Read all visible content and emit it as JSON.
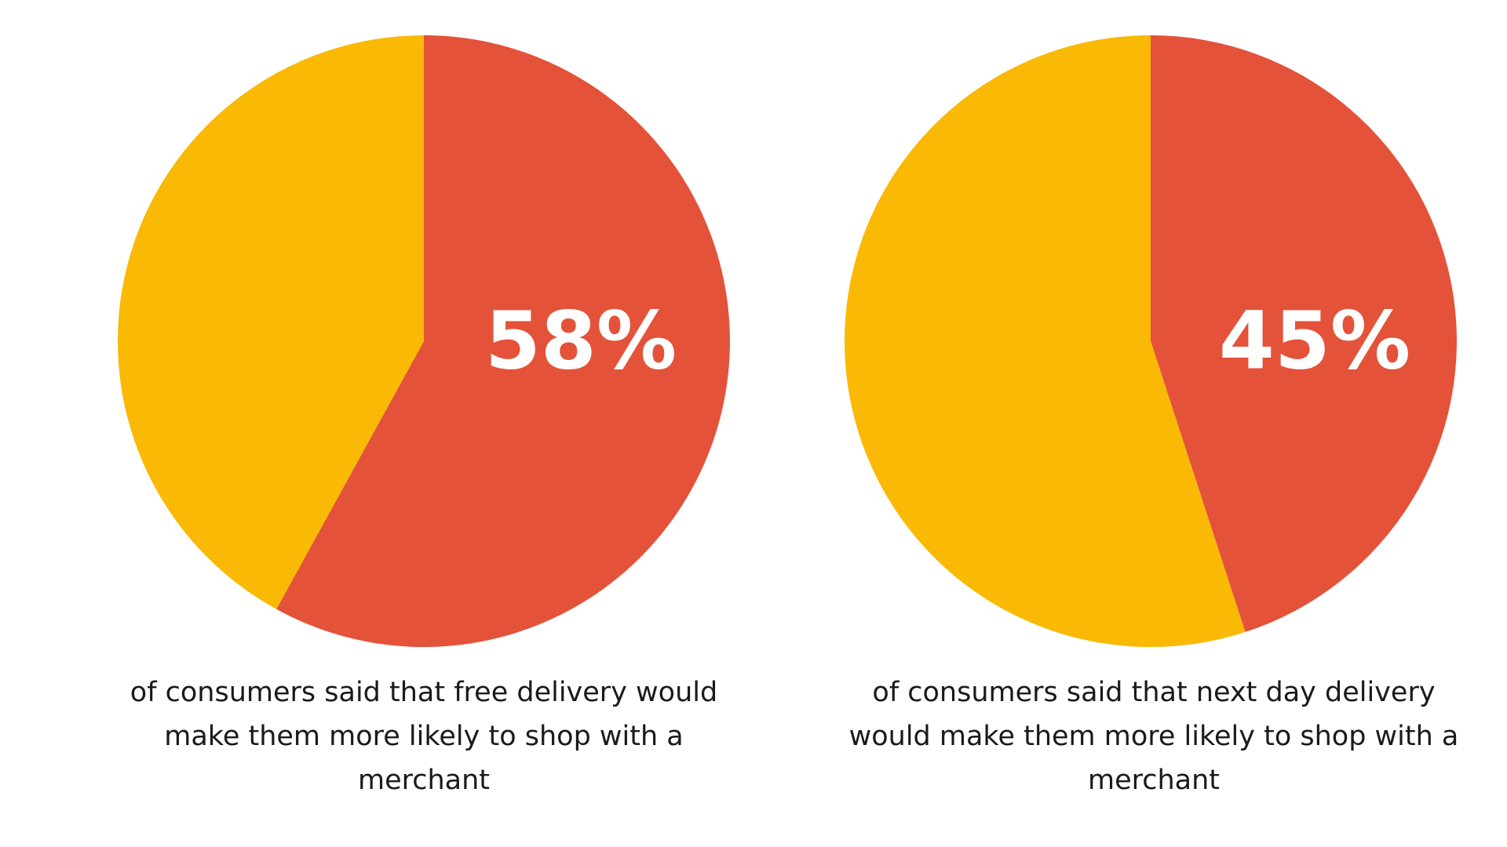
{
  "colors": {
    "primary": "#E4523A",
    "secondary": "#F9B905",
    "label": "#FFFFFF",
    "background": "#FFFFFF"
  },
  "chart_data": [
    {
      "type": "pie",
      "title": "",
      "slices": [
        {
          "label": "58%",
          "value": 58,
          "color": "#E4523A"
        },
        {
          "label": "",
          "value": 42,
          "color": "#F9B905"
        }
      ],
      "caption": "of consumers said that free delivery would make them more likely to shop with a merchant"
    },
    {
      "type": "pie",
      "title": "",
      "slices": [
        {
          "label": "45%",
          "value": 45,
          "color": "#E4523A"
        },
        {
          "label": "",
          "value": 55,
          "color": "#F9B905"
        }
      ],
      "caption": "of consumers said that next day delivery would make them more likely to shop with a merchant"
    }
  ]
}
